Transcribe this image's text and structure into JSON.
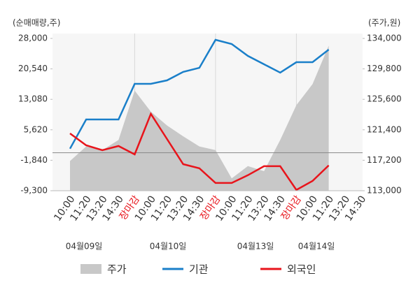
{
  "chart_data": {
    "type": "line",
    "y_label": "(순매매량,주)",
    "y2_label": "(주가,원)",
    "categories": [
      "10:00",
      "11:20",
      "13:20",
      "14:30",
      "장마감",
      "10:00",
      "11:20",
      "13:20",
      "14:30",
      "장마감",
      "10:00",
      "11:20",
      "13:20",
      "14:30",
      "장마감",
      "10:00",
      "11:20",
      "13:20",
      "14:30"
    ],
    "dates": [
      "04월09일",
      "04월10일",
      "04월13일",
      "04월14일"
    ],
    "ylim": [
      -9300,
      28000
    ],
    "yticks": [
      {
        "value": 28000,
        "label": "28,000"
      },
      {
        "value": 20540,
        "label": "20,540"
      },
      {
        "value": 13080,
        "label": "13,080"
      },
      {
        "value": 5620,
        "label": "5,620"
      },
      {
        "value": -1840,
        "label": "-1,840"
      },
      {
        "value": -9300,
        "label": "-9,300"
      }
    ],
    "y2lim": [
      113000,
      134000
    ],
    "y2ticks": [
      {
        "value": 134000,
        "label": "134,000"
      },
      {
        "value": 129800,
        "label": "129,800"
      },
      {
        "value": 125600,
        "label": "125,600"
      },
      {
        "value": 121400,
        "label": "121,400"
      },
      {
        "value": 117200,
        "label": "117,200"
      },
      {
        "value": 113000,
        "label": "113,000"
      }
    ],
    "series": [
      {
        "name": "주가",
        "color": "#c8c8c8",
        "axis": "y2",
        "kind": "area",
        "values": [
          117100,
          119100,
          118600,
          120000,
          126800,
          123900,
          122000,
          120500,
          119100,
          118600,
          114700,
          116400,
          115700,
          120000,
          124800,
          127700,
          133000,
          null,
          null
        ]
      },
      {
        "name": "기관",
        "color": "#1a7fc9",
        "values": [
          1000,
          8150,
          8150,
          8150,
          16880,
          16880,
          17730,
          19800,
          20800,
          27660,
          26630,
          23720,
          21670,
          19620,
          22180,
          22180,
          25260,
          null,
          null
        ]
      },
      {
        "name": "외국인",
        "color": "#e8141b",
        "values": [
          4730,
          1820,
          630,
          1650,
          -400,
          9520,
          3360,
          -2800,
          -3800,
          -7400,
          -7400,
          -5500,
          -3300,
          -3300,
          -9100,
          -6900,
          -3100,
          null,
          null
        ]
      }
    ]
  }
}
